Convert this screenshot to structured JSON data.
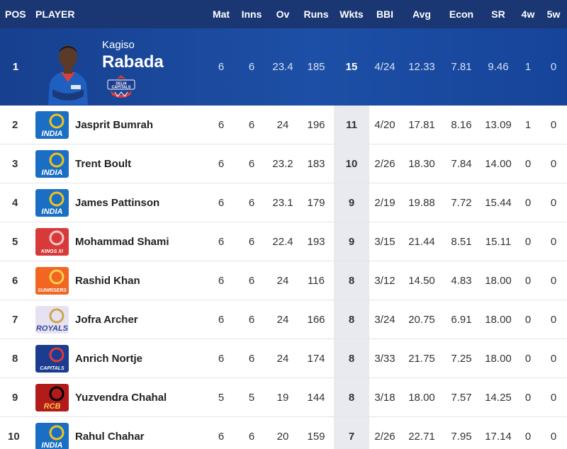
{
  "columns": {
    "pos": "POS",
    "player": "PLAYER",
    "mat": "Mat",
    "inns": "Inns",
    "ov": "Ov",
    "runs": "Runs",
    "wkts": "Wkts",
    "bbi": "BBI",
    "avg": "Avg",
    "econ": "Econ",
    "sr": "SR",
    "w4": "4w",
    "w5": "5w"
  },
  "leader": {
    "pos": "1",
    "first_name": "Kagiso",
    "last_name": "Rabada",
    "team_logo_icon": "delhi-capitals-logo-icon",
    "mat": "6",
    "inns": "6",
    "ov": "23.4",
    "runs": "185",
    "wkts": "15",
    "bbi": "4/24",
    "avg": "12.33",
    "econ": "7.81",
    "sr": "9.46",
    "w4": "1",
    "w5": "0"
  },
  "rows": [
    {
      "pos": "2",
      "name": "Jasprit Bumrah",
      "team": "MI",
      "mat": "6",
      "inns": "6",
      "ov": "24",
      "runs": "196",
      "wkts": "11",
      "bbi": "4/20",
      "avg": "17.81",
      "econ": "8.16",
      "sr": "13.09",
      "w4": "1",
      "w5": "0"
    },
    {
      "pos": "3",
      "name": "Trent Boult",
      "team": "MI",
      "mat": "6",
      "inns": "6",
      "ov": "23.2",
      "runs": "183",
      "wkts": "10",
      "bbi": "2/26",
      "avg": "18.30",
      "econ": "7.84",
      "sr": "14.00",
      "w4": "0",
      "w5": "0"
    },
    {
      "pos": "4",
      "name": "James Pattinson",
      "team": "MI",
      "mat": "6",
      "inns": "6",
      "ov": "23.1",
      "runs": "179",
      "wkts": "9",
      "bbi": "2/19",
      "avg": "19.88",
      "econ": "7.72",
      "sr": "15.44",
      "w4": "0",
      "w5": "0"
    },
    {
      "pos": "5",
      "name": "Mohammad Shami",
      "team": "KXIP",
      "mat": "6",
      "inns": "6",
      "ov": "22.4",
      "runs": "193",
      "wkts": "9",
      "bbi": "3/15",
      "avg": "21.44",
      "econ": "8.51",
      "sr": "15.11",
      "w4": "0",
      "w5": "0"
    },
    {
      "pos": "6",
      "name": "Rashid Khan",
      "team": "SRH",
      "mat": "6",
      "inns": "6",
      "ov": "24",
      "runs": "116",
      "wkts": "8",
      "bbi": "3/12",
      "avg": "14.50",
      "econ": "4.83",
      "sr": "18.00",
      "w4": "0",
      "w5": "0"
    },
    {
      "pos": "7",
      "name": "Jofra Archer",
      "team": "RR",
      "mat": "6",
      "inns": "6",
      "ov": "24",
      "runs": "166",
      "wkts": "8",
      "bbi": "3/24",
      "avg": "20.75",
      "econ": "6.91",
      "sr": "18.00",
      "w4": "0",
      "w5": "0"
    },
    {
      "pos": "8",
      "name": "Anrich Nortje",
      "team": "DC",
      "mat": "6",
      "inns": "6",
      "ov": "24",
      "runs": "174",
      "wkts": "8",
      "bbi": "3/33",
      "avg": "21.75",
      "econ": "7.25",
      "sr": "18.00",
      "w4": "0",
      "w5": "0"
    },
    {
      "pos": "9",
      "name": "Yuzvendra Chahal",
      "team": "RCB",
      "mat": "5",
      "inns": "5",
      "ov": "19",
      "runs": "144",
      "wkts": "8",
      "bbi": "3/18",
      "avg": "18.00",
      "econ": "7.57",
      "sr": "14.25",
      "w4": "0",
      "w5": "0"
    },
    {
      "pos": "10",
      "name": "Rahul Chahar",
      "team": "MI",
      "mat": "6",
      "inns": "6",
      "ov": "20",
      "runs": "159",
      "wkts": "7",
      "bbi": "2/26",
      "avg": "22.71",
      "econ": "7.95",
      "sr": "17.14",
      "w4": "0",
      "w5": "0"
    }
  ],
  "team_logos": {
    "MI": {
      "icon": "mumbai-indians-logo-icon",
      "text": "INDIA",
      "bg": "#1a6fc4",
      "fg": "#ffffff",
      "accent": "#f0c419"
    },
    "KXIP": {
      "icon": "kings-xi-punjab-logo-icon",
      "text": "KINGS XI",
      "bg": "#d83a3a",
      "fg": "#ffffff",
      "accent": "#f5c6c6"
    },
    "SRH": {
      "icon": "sunrisers-hyderabad-logo-icon",
      "text": "SUNRISERS",
      "bg": "#f26522",
      "fg": "#ffffff",
      "accent": "#ffd24d"
    },
    "RR": {
      "icon": "rajasthan-royals-logo-icon",
      "text": "ROYALS",
      "bg": "#e7e1f2",
      "fg": "#2d4b9a",
      "accent": "#c9a94b"
    },
    "DC": {
      "icon": "delhi-capitals-logo-icon",
      "text": "CAPITALS",
      "bg": "#1b3c8f",
      "fg": "#ffffff",
      "accent": "#e23a3a"
    },
    "RCB": {
      "icon": "royal-challengers-bangalore-logo-icon",
      "text": "RCB",
      "bg": "#b31b1b",
      "fg": "#f5c542",
      "accent": "#000000"
    }
  }
}
